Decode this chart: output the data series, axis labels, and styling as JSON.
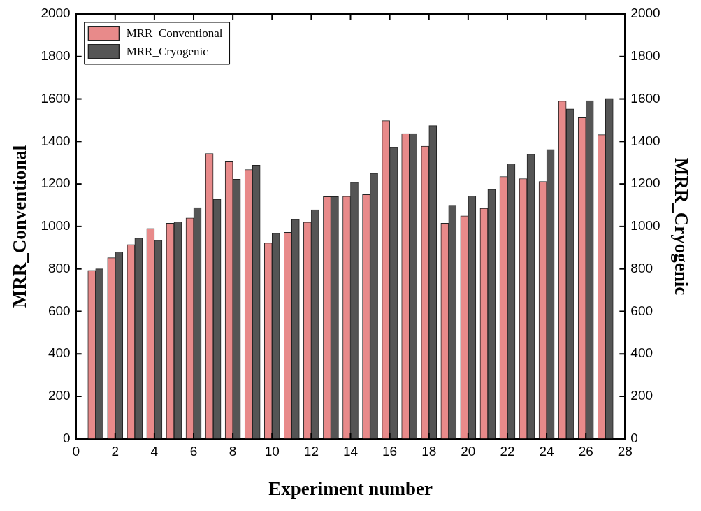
{
  "chart_data": {
    "type": "bar",
    "xlabel": "Experiment number",
    "ylabel": "MRR_Conventional",
    "y2label": "MRR_Cryogenic",
    "x": [
      1,
      2,
      3,
      4,
      5,
      6,
      7,
      8,
      9,
      10,
      11,
      12,
      13,
      14,
      15,
      16,
      17,
      18,
      19,
      20,
      21,
      22,
      23,
      24,
      25,
      26,
      27
    ],
    "series": [
      {
        "name": "MRR_Conventional",
        "color": "#e88a8a",
        "values": [
          793,
          853,
          915,
          990,
          1015,
          1040,
          1343,
          1305,
          1268,
          922,
          972,
          1020,
          1140,
          1142,
          1150,
          1498,
          1437,
          1378,
          1015,
          1050,
          1085,
          1235,
          1225,
          1212,
          1590,
          1512,
          1432
        ]
      },
      {
        "name": "MRR_Cryogenic",
        "color": "#555555",
        "values": [
          800,
          880,
          945,
          935,
          1022,
          1088,
          1128,
          1222,
          1288,
          968,
          1033,
          1078,
          1140,
          1208,
          1250,
          1372,
          1437,
          1475,
          1100,
          1143,
          1175,
          1295,
          1340,
          1362,
          1553,
          1592,
          1602
        ]
      }
    ],
    "xlim": [
      0,
      28
    ],
    "xticks": [
      0,
      2,
      4,
      6,
      8,
      10,
      12,
      14,
      16,
      18,
      20,
      22,
      24,
      26,
      28
    ],
    "ylim": [
      0,
      2000
    ],
    "yticks": [
      0,
      200,
      400,
      600,
      800,
      1000,
      1200,
      1400,
      1600,
      1800,
      2000
    ],
    "y2lim": [
      0,
      2000
    ],
    "y2ticks": [
      0,
      200,
      400,
      600,
      800,
      1000,
      1200,
      1400,
      1600,
      1800,
      2000
    ],
    "legend": "top left",
    "grid": false
  }
}
